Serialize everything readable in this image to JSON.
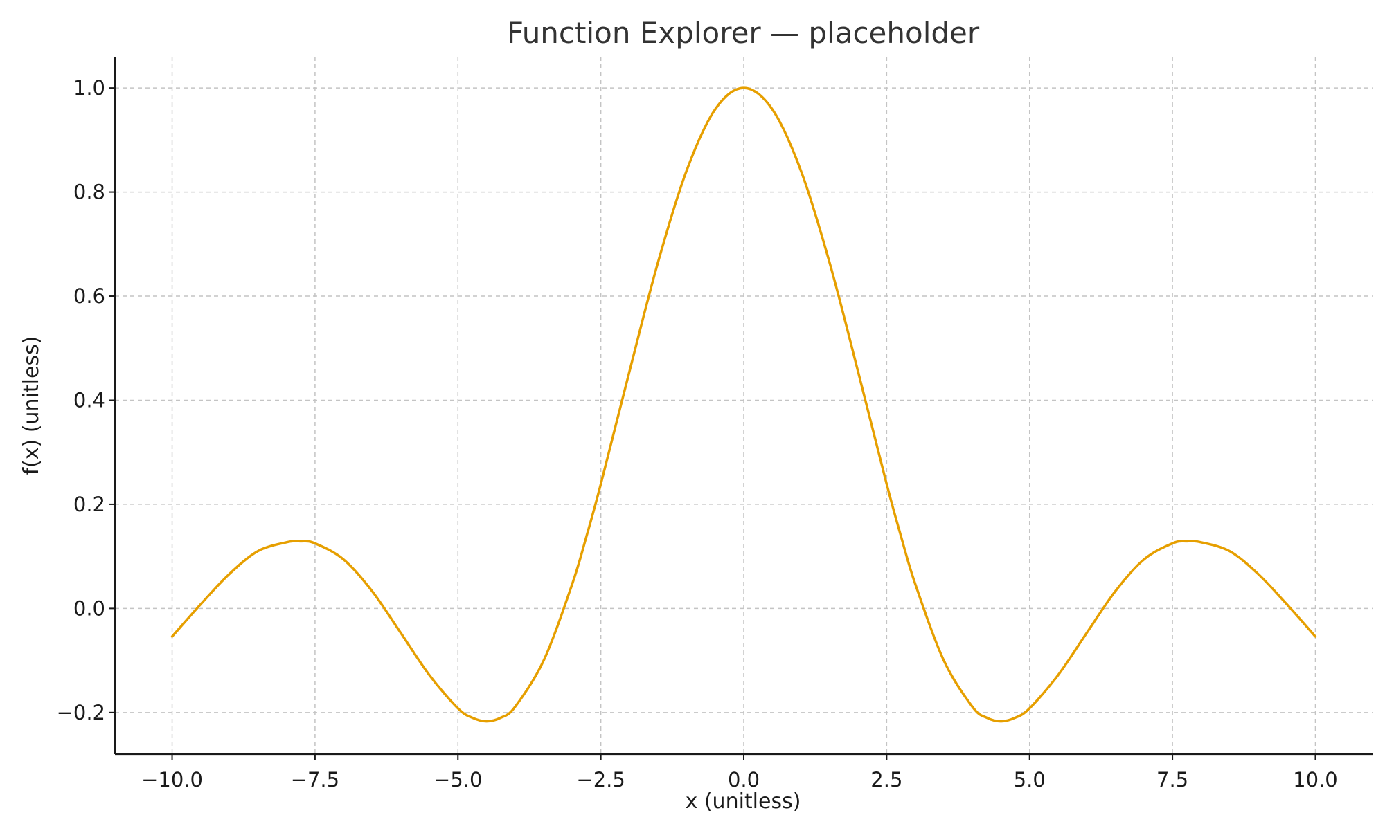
{
  "chart_data": {
    "type": "line",
    "title": "Function Explorer — placeholder",
    "xlabel": "x (unitless)",
    "ylabel": "f(x) (unitless)",
    "xlim": [
      -11,
      11
    ],
    "ylim": [
      -0.28,
      1.06
    ],
    "grid": true,
    "x_ticks": [
      -10.0,
      -7.5,
      -5.0,
      -2.5,
      0.0,
      2.5,
      5.0,
      7.5,
      10.0
    ],
    "x_tick_labels": [
      "−10.0",
      "−7.5",
      "−5.0",
      "−2.5",
      "0.0",
      "2.5",
      "5.0",
      "7.5",
      "10.0"
    ],
    "y_ticks": [
      -0.2,
      0.0,
      0.2,
      0.4,
      0.6,
      0.8,
      1.0
    ],
    "y_tick_labels": [
      "−0.2",
      "0.0",
      "0.2",
      "0.4",
      "0.6",
      "0.8",
      "1.0"
    ],
    "series": [
      {
        "color": "#e69f00",
        "x": [
          -10,
          -9.5,
          -9,
          -8.5,
          -8,
          -7.75,
          -7.5,
          -7,
          -6.5,
          -6,
          -5.5,
          -5,
          -4.75,
          -4.5,
          -4.25,
          -4,
          -3.5,
          -3,
          -2.75,
          -2.5,
          -2,
          -1.5,
          -1,
          -0.5,
          0,
          0.5,
          1,
          1.5,
          2,
          2.5,
          2.75,
          3,
          3.5,
          4,
          4.25,
          4.5,
          4.75,
          5,
          5.5,
          6,
          6.5,
          7,
          7.5,
          7.75,
          8,
          8.5,
          9,
          9.5,
          10
        ],
        "y": [
          -0.054,
          0.008,
          0.066,
          0.11,
          0.127,
          0.129,
          0.125,
          0.094,
          0.033,
          -0.047,
          -0.128,
          -0.192,
          -0.21,
          -0.217,
          -0.21,
          -0.189,
          -0.1,
          0.047,
          0.139,
          0.239,
          0.455,
          0.665,
          0.841,
          0.959,
          1.0,
          0.959,
          0.841,
          0.665,
          0.455,
          0.239,
          0.139,
          0.047,
          -0.1,
          -0.189,
          -0.21,
          -0.217,
          -0.21,
          -0.192,
          -0.128,
          -0.047,
          0.033,
          0.094,
          0.125,
          0.129,
          0.127,
          0.11,
          0.066,
          0.008,
          -0.054
        ]
      }
    ]
  }
}
